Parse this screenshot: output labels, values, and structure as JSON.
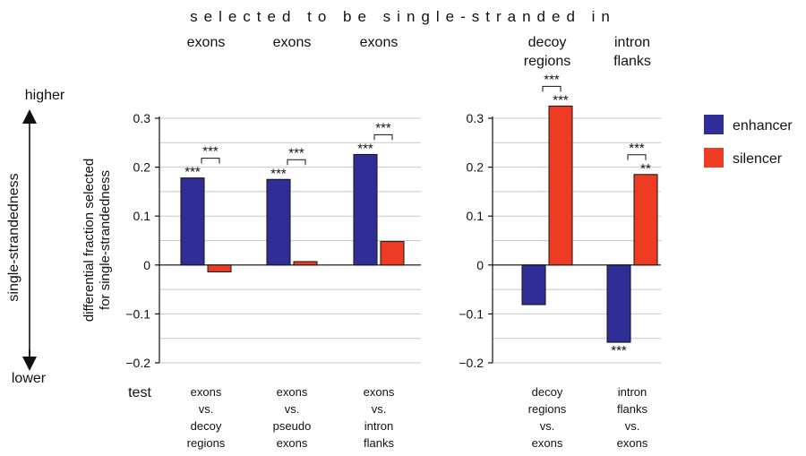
{
  "chart_data": {
    "type": "bar",
    "title": "selected to be single-stranded in",
    "ylabel_lines": [
      "differential fraction selected",
      "for single-strandedness"
    ],
    "side_axis": {
      "label": "single-strandedness",
      "top": "higher",
      "bottom": "lower"
    },
    "test_label": "test",
    "ylim": [
      -0.2,
      0.3
    ],
    "yticks": [
      -0.2,
      -0.1,
      0,
      0.1,
      0.2,
      0.3
    ],
    "ytick_labels": [
      "−0.2",
      "−0.1",
      "0",
      "0.1",
      "0.2",
      "0.3"
    ],
    "grid": true,
    "legend_position": "right",
    "series": [
      {
        "name": "enhancer",
        "color": "#2e2e96"
      },
      {
        "name": "silencer",
        "color": "#ee3b24"
      }
    ],
    "panels": [
      {
        "groups": [
          {
            "header": [
              "exons"
            ],
            "test": [
              "exons",
              "vs.",
              "decoy",
              "regions"
            ],
            "values": [
              0.178,
              -0.014
            ],
            "bar_stars": [
              "***",
              ""
            ],
            "pair_stars": "***"
          },
          {
            "header": [
              "exons"
            ],
            "test": [
              "exons",
              "vs.",
              "pseudo",
              "exons"
            ],
            "values": [
              0.175,
              0.007
            ],
            "bar_stars": [
              "***",
              ""
            ],
            "pair_stars": "***"
          },
          {
            "header": [
              "exons"
            ],
            "test": [
              "exons",
              "vs.",
              "intron",
              "flanks"
            ],
            "values": [
              0.226,
              0.048
            ],
            "bar_stars": [
              "***",
              ""
            ],
            "pair_stars": "***"
          }
        ]
      },
      {
        "groups": [
          {
            "header": [
              "decoy",
              "regions"
            ],
            "test": [
              "decoy",
              "regions",
              "vs.",
              "exons"
            ],
            "values": [
              -0.081,
              0.325
            ],
            "bar_stars": [
              "",
              "***"
            ],
            "pair_stars": "***"
          },
          {
            "header": [
              "intron",
              "flanks"
            ],
            "test": [
              "intron",
              "flanks",
              "vs.",
              "exons"
            ],
            "values": [
              -0.158,
              0.185
            ],
            "bar_stars": [
              "***",
              "**"
            ],
            "pair_stars": "***"
          }
        ]
      }
    ]
  }
}
